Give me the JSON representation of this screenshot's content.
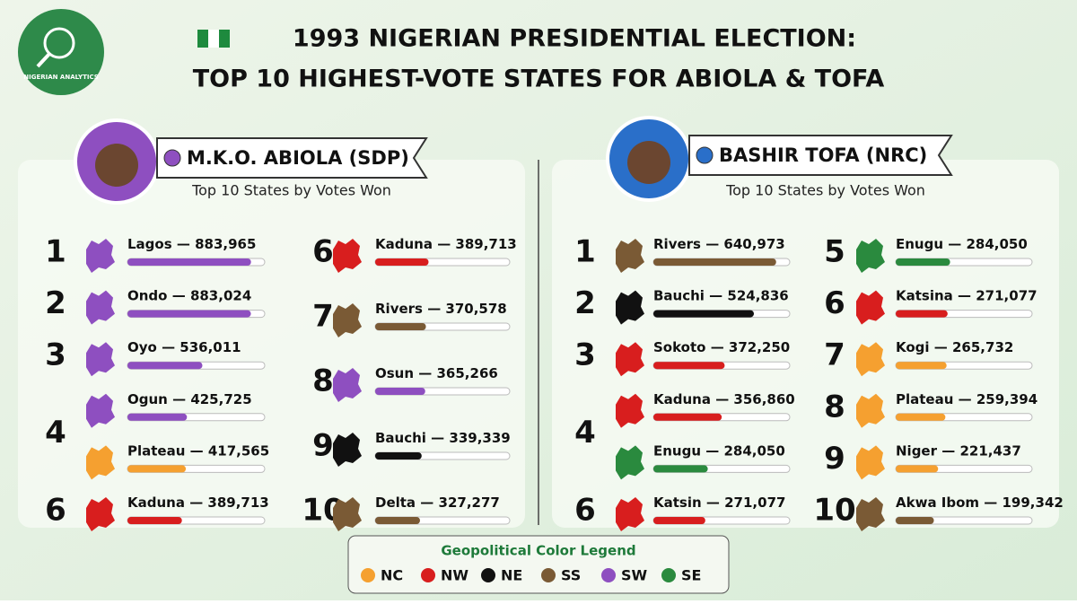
{
  "brand": "NIGERIAN ANALYTICS",
  "title": {
    "line1": "1993 NIGERIAN PRESIDENTIAL ELECTION:",
    "line2": "TOP 10 HIGHEST-VOTE STATES FOR ABIOLA & TOFA"
  },
  "panels": [
    {
      "candidate": "M.K.O. ABIOLA (SDP)",
      "dot_color": "#8e4fc0",
      "subtitle": "Top 10 States by Votes Won",
      "columns": [
        [
          {
            "rank": "1",
            "states": [
              {
                "name": "Lagos",
                "region": "SW",
                "votes": {
                  "value": 883965,
                  "label": "883,965"
                }
              }
            ]
          },
          {
            "rank": "2",
            "states": [
              {
                "name": "Ondo",
                "region": "SW",
                "votes": {
                  "value": 883024,
                  "label": "883,024"
                }
              }
            ]
          },
          {
            "rank": "3",
            "states": [
              {
                "name": "Oyo",
                "region": "SW",
                "votes": {
                  "value": 536011,
                  "label": "536,011"
                }
              }
            ]
          },
          {
            "rank": "4",
            "states": [
              {
                "name": "Ogun",
                "region": "SW",
                "votes": {
                  "value": 425725,
                  "label": "425,725"
                }
              },
              {
                "name": "Plateau",
                "region": "NC",
                "votes": {
                  "value": 417565,
                  "label": "417,565"
                }
              }
            ]
          },
          {
            "rank": "6",
            "states": [
              {
                "name": "Kaduna",
                "region": "NW",
                "votes": {
                  "value": 389713,
                  "label": "389,713"
                }
              }
            ]
          }
        ],
        [
          {
            "rank": "6",
            "states": [
              {
                "name": "Kaduna",
                "region": "NW",
                "votes": {
                  "value": 389713,
                  "label": "389,713"
                }
              }
            ]
          },
          {
            "rank": "7",
            "states": [
              {
                "name": "Rivers",
                "region": "SS",
                "votes": {
                  "value": 370578,
                  "label": "370,578"
                }
              }
            ]
          },
          {
            "rank": "8",
            "states": [
              {
                "name": "Osun",
                "region": "SW",
                "votes": {
                  "value": 365266,
                  "label": "365,266"
                }
              }
            ]
          },
          {
            "rank": "9",
            "states": [
              {
                "name": "Bauchi",
                "region": "NE",
                "votes": {
                  "value": 339339,
                  "label": "339,339"
                }
              }
            ]
          },
          {
            "rank": "10",
            "states": [
              {
                "name": "Delta",
                "region": "SS",
                "votes": {
                  "value": 327277,
                  "label": "327,277"
                }
              }
            ]
          }
        ]
      ]
    },
    {
      "candidate": "BASHIR TOFA (NRC)",
      "dot_color": "#2a6fc9",
      "subtitle": "Top 10 States by Votes Won",
      "columns": [
        [
          {
            "rank": "1",
            "states": [
              {
                "name": "Rivers",
                "region": "SS",
                "votes": {
                  "value": 640973,
                  "label": "640,973"
                }
              }
            ]
          },
          {
            "rank": "2",
            "states": [
              {
                "name": "Bauchi",
                "region": "NE",
                "votes": {
                  "value": 524836,
                  "label": "524,836"
                }
              }
            ]
          },
          {
            "rank": "3",
            "states": [
              {
                "name": "Sokoto",
                "region": "NW",
                "votes": {
                  "value": 372250,
                  "label": "372,250"
                }
              }
            ]
          },
          {
            "rank": "4",
            "states": [
              {
                "name": "Kaduna",
                "region": "NW",
                "votes": {
                  "value": 356860,
                  "label": "356,860"
                }
              },
              {
                "name": "Enugu",
                "region": "SE",
                "votes": {
                  "value": 284050,
                  "label": "284,050"
                }
              }
            ]
          },
          {
            "rank": "6",
            "states": [
              {
                "name": "Katsin",
                "region": "NW",
                "votes": {
                  "value": 271077,
                  "label": "271,077"
                }
              }
            ]
          }
        ],
        [
          {
            "rank": "5",
            "states": [
              {
                "name": "Enugu",
                "region": "SE",
                "votes": {
                  "value": 284050,
                  "label": "284,050"
                }
              }
            ]
          },
          {
            "rank": "6",
            "states": [
              {
                "name": "Katsina",
                "region": "NW",
                "votes": {
                  "value": 271077,
                  "label": "271,077"
                }
              }
            ]
          },
          {
            "rank": "7",
            "states": [
              {
                "name": "Kogi",
                "region": "NC",
                "votes": {
                  "value": 265732,
                  "label": "265,732"
                }
              }
            ]
          },
          {
            "rank": "8",
            "states": [
              {
                "name": "Plateau",
                "region": "NC",
                "votes": {
                  "value": 259394,
                  "label": "259,394"
                }
              }
            ]
          },
          {
            "rank": "9",
            "states": [
              {
                "name": "Niger",
                "region": "NC",
                "votes": {
                  "value": 221437,
                  "label": "221,437"
                }
              }
            ]
          },
          {
            "rank": "10",
            "states": [
              {
                "name": "Akwa Ibom",
                "region": "SS",
                "votes": {
                  "value": 199342,
                  "label": "199,342"
                }
              }
            ]
          }
        ]
      ]
    }
  ],
  "legend": {
    "title": "Geopolitical Color Legend",
    "items": [
      {
        "code": "NC",
        "color": "#f5a030"
      },
      {
        "code": "NW",
        "color": "#d81e1e"
      },
      {
        "code": "NE",
        "color": "#111111"
      },
      {
        "code": "SS",
        "color": "#7a5a35"
      },
      {
        "code": "SW",
        "color": "#8e4fc0"
      },
      {
        "code": "SE",
        "color": "#2a8a3e"
      }
    ]
  }
}
